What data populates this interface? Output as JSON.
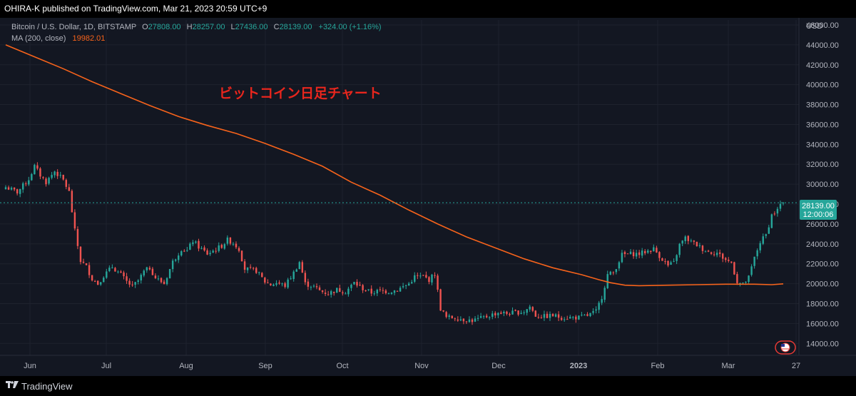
{
  "header": {
    "published": "OHIRA-K published on TradingView.com, Mar 21, 2023 20:59 UTC+9"
  },
  "legend": {
    "symbol": "Bitcoin / U.S. Dollar, 1D, BITSTAMP",
    "o_label": "O",
    "o_value": "27808.00",
    "h_label": "H",
    "h_value": "28257.00",
    "l_label": "L",
    "l_value": "27436.00",
    "c_label": "C",
    "c_value": "28139.00",
    "change": "+324.00 (+1.16%)",
    "ma_label": "MA (200, close)",
    "ma_value": "19982.01"
  },
  "annotation": "ビットコイン日足チャート",
  "price_label": {
    "price": "28139.00",
    "countdown": "12:00:06"
  },
  "footer": {
    "brand": "TradingView"
  },
  "colors": {
    "background": "#131722",
    "up": "#26a69a",
    "down": "#ef5350",
    "ma": "#f7631b",
    "annotation": "#e8261d",
    "axis_text": "#b2b5be"
  },
  "chart_data": {
    "type": "candlestick",
    "symbol": "BTCUSD",
    "currency": "USD",
    "ylim": [
      12800,
      46500
    ],
    "y_ticks": [
      14000,
      16000,
      18000,
      20000,
      22000,
      24000,
      26000,
      28000,
      30000,
      32000,
      34000,
      36000,
      38000,
      40000,
      42000,
      44000,
      46000
    ],
    "x_ticks": [
      "Jun",
      "Jul",
      "Aug",
      "Sep",
      "Oct",
      "Nov",
      "Dec",
      "2023",
      "Feb",
      "Mar",
      "27"
    ],
    "last_close": 28139,
    "close_path": [
      [
        0,
        29700
      ],
      [
        4,
        29200
      ],
      [
        8,
        30500
      ],
      [
        10,
        31800
      ],
      [
        12,
        30900
      ],
      [
        14,
        30200
      ],
      [
        17,
        31300
      ],
      [
        20,
        30400
      ],
      [
        22,
        29200
      ],
      [
        24,
        25300
      ],
      [
        26,
        22300
      ],
      [
        28,
        21700
      ],
      [
        30,
        20500
      ],
      [
        32,
        20000
      ],
      [
        34,
        20800
      ],
      [
        37,
        21700
      ],
      [
        40,
        20900
      ],
      [
        42,
        20200
      ],
      [
        44,
        19700
      ],
      [
        46,
        20300
      ],
      [
        48,
        21200
      ],
      [
        50,
        21600
      ],
      [
        52,
        20600
      ],
      [
        55,
        20000
      ],
      [
        58,
        22200
      ],
      [
        61,
        23500
      ],
      [
        63,
        23300
      ],
      [
        65,
        24300
      ],
      [
        67,
        23700
      ],
      [
        70,
        23000
      ],
      [
        72,
        23300
      ],
      [
        75,
        23800
      ],
      [
        77,
        24400
      ],
      [
        79,
        24100
      ],
      [
        81,
        23500
      ],
      [
        83,
        21500
      ],
      [
        85,
        21400
      ],
      [
        87,
        21300
      ],
      [
        90,
        20200
      ],
      [
        92,
        19900
      ],
      [
        94,
        20100
      ],
      [
        97,
        19800
      ],
      [
        100,
        21100
      ],
      [
        102,
        22200
      ],
      [
        104,
        20000
      ],
      [
        107,
        19700
      ],
      [
        109,
        19300
      ],
      [
        112,
        19000
      ],
      [
        115,
        19400
      ],
      [
        118,
        19200
      ],
      [
        121,
        20100
      ],
      [
        124,
        19500
      ],
      [
        127,
        19100
      ],
      [
        130,
        19300
      ],
      [
        133,
        19200
      ],
      [
        136,
        19400
      ],
      [
        140,
        20000
      ],
      [
        142,
        20700
      ],
      [
        145,
        20700
      ],
      [
        147,
        20400
      ],
      [
        149,
        21000
      ],
      [
        151,
        17500
      ],
      [
        153,
        16600
      ],
      [
        156,
        16600
      ],
      [
        159,
        16400
      ],
      [
        162,
        16300
      ],
      [
        165,
        16500
      ],
      [
        168,
        16800
      ],
      [
        171,
        17100
      ],
      [
        174,
        17000
      ],
      [
        177,
        17100
      ],
      [
        180,
        17200
      ],
      [
        182,
        17700
      ],
      [
        184,
        16800
      ],
      [
        187,
        16700
      ],
      [
        190,
        16800
      ],
      [
        193,
        16600
      ],
      [
        196,
        16600
      ],
      [
        199,
        16600
      ],
      [
        202,
        16800
      ],
      [
        205,
        17200
      ],
      [
        207,
        18700
      ],
      [
        209,
        20900
      ],
      [
        211,
        21100
      ],
      [
        214,
        22900
      ],
      [
        217,
        23000
      ],
      [
        220,
        23000
      ],
      [
        223,
        23300
      ],
      [
        225,
        23500
      ],
      [
        227,
        22800
      ],
      [
        230,
        21800
      ],
      [
        232,
        22100
      ],
      [
        234,
        23900
      ],
      [
        236,
        24600
      ],
      [
        238,
        24200
      ],
      [
        240,
        23900
      ],
      [
        242,
        23500
      ],
      [
        244,
        23200
      ],
      [
        247,
        23100
      ],
      [
        250,
        22400
      ],
      [
        252,
        22100
      ],
      [
        254,
        20200
      ],
      [
        256,
        19900
      ],
      [
        258,
        20600
      ],
      [
        260,
        22600
      ],
      [
        262,
        24200
      ],
      [
        264,
        24900
      ],
      [
        266,
        26900
      ],
      [
        268,
        27400
      ],
      [
        269,
        28000
      ],
      [
        270,
        28139
      ]
    ],
    "ma_200": [
      [
        0,
        44000
      ],
      [
        10,
        42800
      ],
      [
        20,
        41600
      ],
      [
        30,
        40300
      ],
      [
        40,
        39100
      ],
      [
        50,
        37900
      ],
      [
        60,
        36800
      ],
      [
        70,
        35900
      ],
      [
        80,
        35100
      ],
      [
        90,
        34100
      ],
      [
        100,
        33000
      ],
      [
        110,
        31800
      ],
      [
        120,
        30200
      ],
      [
        130,
        28900
      ],
      [
        140,
        27400
      ],
      [
        150,
        26000
      ],
      [
        160,
        24700
      ],
      [
        170,
        23600
      ],
      [
        180,
        22500
      ],
      [
        190,
        21600
      ],
      [
        200,
        20900
      ],
      [
        206,
        20400
      ],
      [
        210,
        20100
      ],
      [
        215,
        19850
      ],
      [
        220,
        19800
      ],
      [
        230,
        19850
      ],
      [
        240,
        19900
      ],
      [
        250,
        19950
      ],
      [
        260,
        19950
      ],
      [
        266,
        19900
      ],
      [
        270,
        19982
      ]
    ]
  }
}
